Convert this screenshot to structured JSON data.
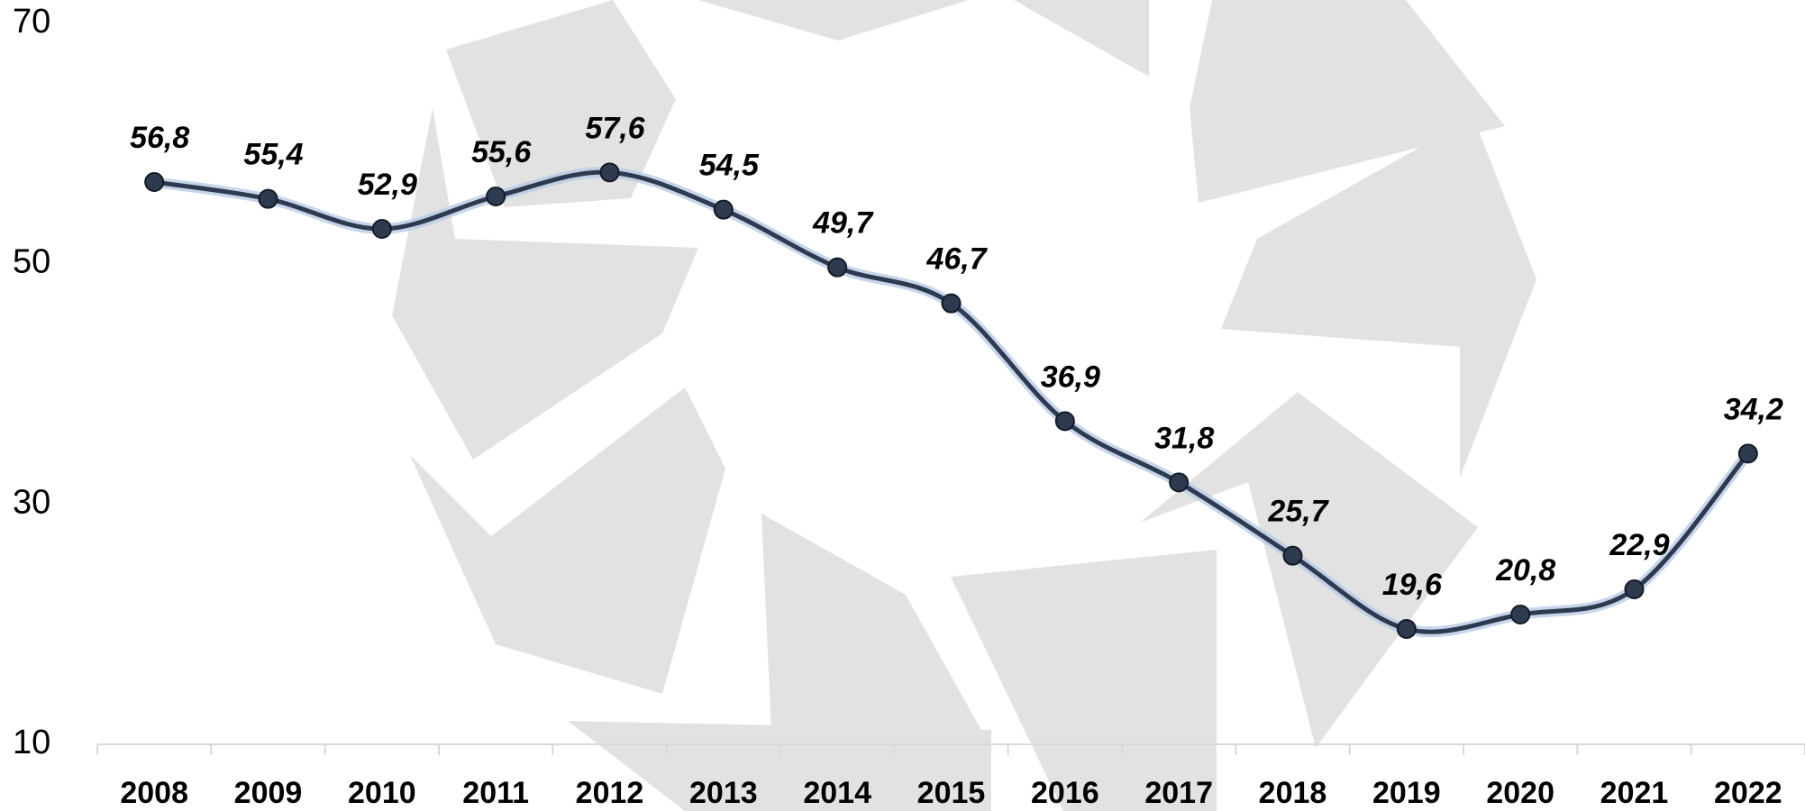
{
  "chart_data": {
    "type": "line",
    "categories": [
      "2008",
      "2009",
      "2010",
      "2011",
      "2012",
      "2013",
      "2014",
      "2015",
      "2016",
      "2017",
      "2018",
      "2019",
      "2020",
      "2021",
      "2022"
    ],
    "series": [
      {
        "color": "#2e3a4f",
        "values": [
          56.8,
          55.4,
          52.9,
          55.6,
          57.6,
          54.5,
          49.7,
          46.7,
          36.9,
          31.8,
          25.7,
          19.6,
          20.8,
          22.9,
          34.2
        ],
        "value_labels": [
          "56,8",
          "55,4",
          "52,9",
          "55,6",
          "57,6",
          "54,5",
          "49,7",
          "46,7",
          "36,9",
          "31,8",
          "25,7",
          "19,6",
          "20,8",
          "22,9",
          "34,2"
        ]
      }
    ],
    "ylim": [
      10,
      70
    ],
    "yticks": [
      10,
      30,
      50,
      70
    ],
    "smooth": true
  }
}
